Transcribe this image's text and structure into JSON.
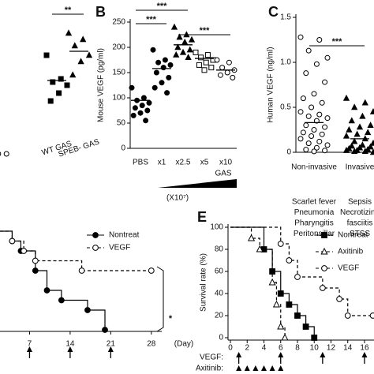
{
  "chart_data": [
    {
      "type": "strip",
      "categories": [
        null,
        "WT GAS",
        "SPEB- GAS"
      ],
      "markers": [
        "circle-open",
        "square-filled",
        "triangle-filled"
      ],
      "values": [
        [
          2.5,
          2.5,
          2.5
        ],
        [
          65,
          50,
          48,
          46,
          41,
          36
        ],
        [
          79,
          75,
          71,
          65,
          61,
          52.5
        ]
      ],
      "means": [
        null,
        49,
        67.5
      ],
      "ylim": [
        0,
        100
      ],
      "significance": [
        {
          "label": "**",
          "from": 1,
          "to": 2
        }
      ]
    },
    {
      "type": "strip",
      "panel": "B",
      "ylabel": "Mouse VEGF (pg/ml)",
      "categories": [
        "PBS",
        "x1",
        "x2.5",
        "x5",
        "x10"
      ],
      "markers": [
        "circle-filled",
        "circle-filled",
        "triangle-filled",
        "square-open",
        "circle-open"
      ],
      "values": [
        [
          120,
          100,
          95,
          90,
          85,
          80,
          75,
          70,
          65,
          55
        ],
        [
          195,
          175,
          170,
          165,
          160,
          150,
          140,
          130,
          120,
          110
        ],
        [
          240,
          225,
          220,
          215,
          210,
          200,
          195,
          190,
          185,
          180
        ],
        [
          190,
          185,
          180,
          175,
          170,
          165,
          160,
          155
        ],
        [
          175,
          170,
          160,
          155,
          150,
          145,
          140
        ]
      ],
      "means": [
        95,
        158,
        205,
        178,
        155
      ],
      "ylim": [
        0,
        250
      ],
      "yticks": [
        0,
        50,
        100,
        150,
        200,
        250
      ],
      "significance": [
        {
          "label": "***",
          "from": 0,
          "to": 2
        },
        {
          "label": "***",
          "from": 0,
          "to": 1
        },
        {
          "label": "***",
          "from": 2,
          "to": 4
        }
      ],
      "annotations": [
        "GAS",
        "(X10⁷)"
      ]
    },
    {
      "type": "strip",
      "panel": "C",
      "ylabel": "Human VEGF (ng/ml)",
      "categories": [
        "Non-invasive",
        "Invasive"
      ],
      "markers": [
        "circle-open",
        "triangle-filled"
      ],
      "values": [
        [
          1.28,
          1.25,
          1.13,
          1.05,
          0.98,
          0.88,
          0.78,
          0.65,
          0.6,
          0.55,
          0.5,
          0.45,
          0.42,
          0.4,
          0.38,
          0.35,
          0.3,
          0.28,
          0.25,
          0.22,
          0.2,
          0.18,
          0.15,
          0.12,
          0.1,
          0.08,
          0.05,
          0.03,
          0.02,
          0.01
        ],
        [
          0.6,
          0.55,
          0.5,
          0.45,
          0.4,
          0.35,
          0.3,
          0.28,
          0.25,
          0.22,
          0.2,
          0.18,
          0.15,
          0.12,
          0.1,
          0.08,
          0.07,
          0.06,
          0.05,
          0.04,
          0.03,
          0.02,
          0.02,
          0.01,
          0.01,
          0
        ]
      ],
      "means": [
        0.33,
        0.15
      ],
      "ylim": [
        0,
        1.5
      ],
      "yticks": [
        0,
        0.5,
        {
          "value": 1,
          "label": "1.0"
        },
        1.5
      ],
      "significance": [
        {
          "label": "***",
          "from": 0,
          "to": 1
        }
      ],
      "group_labels": [
        [
          "Scarlet fever",
          "Pneumonia",
          "Pharyngitis",
          "Peritonsillar"
        ],
        [
          "Sepsis",
          "Necrotizing",
          "fasciitis",
          "STSS"
        ]
      ]
    },
    {
      "type": "step",
      "xlim": [
        0,
        30
      ],
      "ylim": [
        0,
        100
      ],
      "xticks": [
        7,
        14,
        21,
        28
      ],
      "xlabel": "(Day)",
      "series": [
        {
          "name": "Nontreat",
          "marker": "circle-filled",
          "dash": false,
          "x": [
            0,
            4,
            5.5,
            8,
            10,
            12.5,
            17,
            20
          ],
          "values": [
            100,
            90,
            80,
            60,
            40,
            30,
            20,
            0
          ]
        },
        {
          "name": "VEGF",
          "marker": "circle-open",
          "dash": true,
          "x": [
            0,
            4,
            6,
            8,
            16,
            28
          ],
          "values": [
            100,
            90,
            80,
            70,
            60,
            60
          ]
        }
      ],
      "annotations": [
        "*"
      ],
      "dosing": [
        {
          "symbol": "arrow",
          "days": [
            7,
            14,
            21
          ]
        }
      ]
    },
    {
      "type": "step",
      "panel": "E",
      "ylabel": "Survival rate (%)",
      "xlim": [
        0,
        17
      ],
      "ylim": [
        0,
        100
      ],
      "xticks": [
        0,
        2,
        4,
        6,
        8,
        10,
        12,
        14,
        16
      ],
      "yticks": [
        0,
        20,
        40,
        60,
        80,
        100
      ],
      "series": [
        {
          "name": "Nontreat",
          "marker": "square-filled",
          "dash": false,
          "x": [
            0,
            4,
            5,
            6,
            7,
            8,
            9,
            10
          ],
          "values": [
            100,
            80,
            60,
            40,
            30,
            20,
            10,
            0
          ]
        },
        {
          "name": "Axitinib",
          "marker": "triangle-open",
          "dash": true,
          "x": [
            0,
            2.5,
            3.5,
            5,
            5.5,
            6,
            6.5
          ],
          "values": [
            100,
            90,
            80,
            50,
            30,
            10,
            0
          ]
        },
        {
          "name": "VEGF",
          "marker": "circle-open",
          "dash": true,
          "x": [
            0,
            6,
            7,
            8,
            11,
            13,
            14,
            17
          ],
          "values": [
            100,
            85,
            70,
            55,
            45,
            35,
            20,
            20
          ]
        }
      ],
      "dosing": [
        {
          "label": "VEGF:",
          "symbol": "arrow",
          "days": [
            1,
            6,
            11,
            16
          ]
        },
        {
          "label": "Axitinib:",
          "symbol": "triangle",
          "days": [
            1,
            2,
            3,
            4,
            5,
            6
          ]
        }
      ]
    }
  ]
}
